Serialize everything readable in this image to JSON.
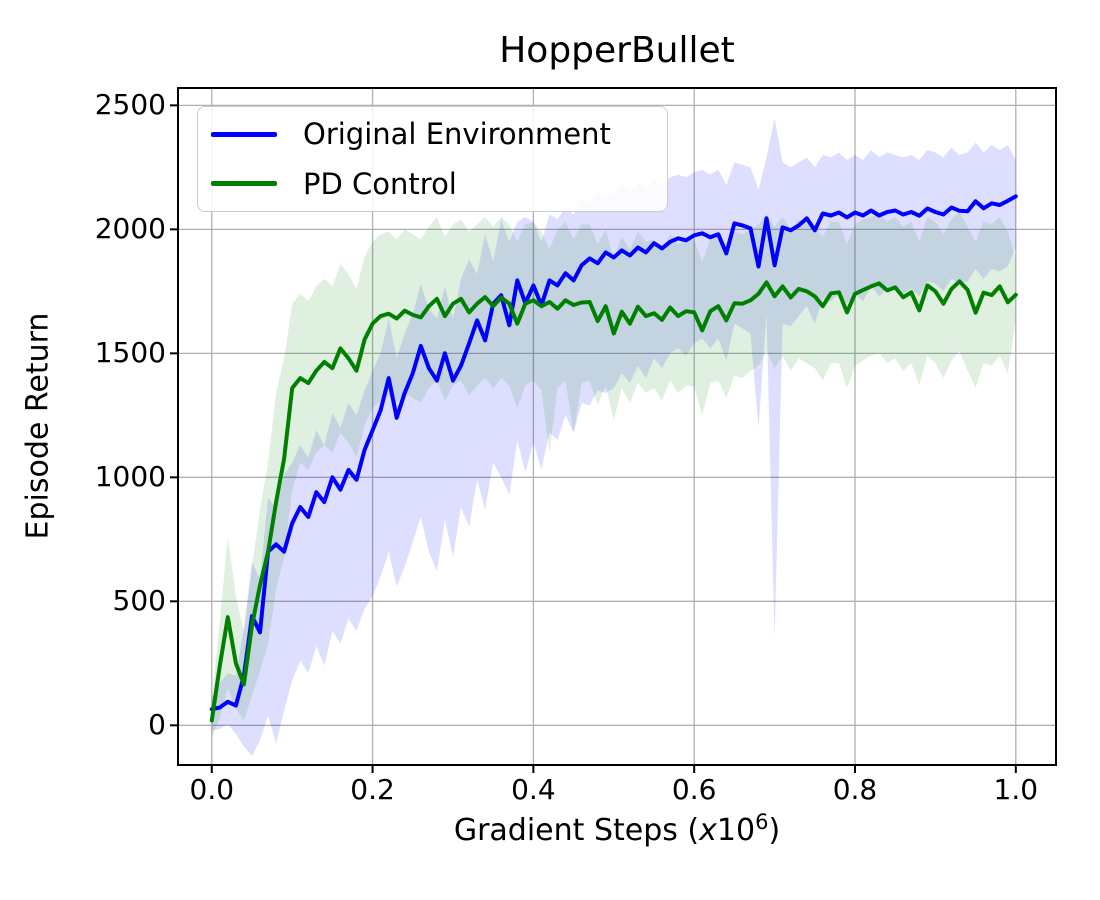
{
  "figure": {
    "background": "#ffffff",
    "grid_color": "#b0b0b0",
    "spine_color": "#000000"
  },
  "chart_data": {
    "type": "line",
    "title": "HopperBullet",
    "ylabel": "Episode Return",
    "xlabel_text": "Gradient Steps (x10^6)",
    "xlabel_parts": {
      "prefix": "Gradient Steps (",
      "variable": "x",
      "base": "10",
      "exponent": "6",
      "suffix": ")"
    },
    "xlim": [
      -0.042,
      1.05
    ],
    "ylim": [
      -160,
      2570
    ],
    "grid": true,
    "legend_position": "upper-left",
    "x_ticks": {
      "values": [
        0,
        0.2,
        0.4,
        0.6,
        0.8,
        1.0
      ],
      "labels": [
        "0.0",
        "0.2",
        "0.4",
        "0.6",
        "0.8",
        "1.0"
      ]
    },
    "y_ticks": {
      "values": [
        0,
        500,
        1000,
        1500,
        2000,
        2500
      ],
      "labels": [
        "0",
        "500",
        "1000",
        "1500",
        "2000",
        "2500"
      ]
    },
    "x": [
      0,
      0.01,
      0.02,
      0.03,
      0.04,
      0.05,
      0.06,
      0.07,
      0.08,
      0.09,
      0.1,
      0.11,
      0.12,
      0.13,
      0.14,
      0.15,
      0.16,
      0.17,
      0.18,
      0.19,
      0.2,
      0.21,
      0.22,
      0.23,
      0.24,
      0.25,
      0.26,
      0.27,
      0.28,
      0.29,
      0.3,
      0.31,
      0.32,
      0.33,
      0.34,
      0.35,
      0.36,
      0.37,
      0.38,
      0.39,
      0.4,
      0.41,
      0.42,
      0.43,
      0.44,
      0.45,
      0.46,
      0.47,
      0.48,
      0.49,
      0.5,
      0.51,
      0.52,
      0.53,
      0.54,
      0.55,
      0.56,
      0.57,
      0.58,
      0.59,
      0.6,
      0.61,
      0.62,
      0.63,
      0.64,
      0.65,
      0.66,
      0.67,
      0.68,
      0.69,
      0.7,
      0.71,
      0.72,
      0.73,
      0.74,
      0.75,
      0.76,
      0.77,
      0.78,
      0.79,
      0.8,
      0.81,
      0.82,
      0.83,
      0.84,
      0.85,
      0.86,
      0.87,
      0.88,
      0.89,
      0.9,
      0.91,
      0.92,
      0.93,
      0.94,
      0.95,
      0.96,
      0.97,
      0.98,
      0.99,
      1.0
    ],
    "series": [
      {
        "name": "Original Environment",
        "color": "#0000ff",
        "band_alpha": 0.13,
        "mean": [
          65,
          72,
          95,
          80,
          200,
          440,
          375,
          700,
          730,
          700,
          815,
          880,
          840,
          940,
          900,
          1000,
          950,
          1030,
          990,
          1110,
          1190,
          1270,
          1400,
          1240,
          1340,
          1420,
          1530,
          1440,
          1390,
          1500,
          1390,
          1450,
          1540,
          1633,
          1552,
          1700,
          1734,
          1613,
          1794,
          1702,
          1774,
          1694,
          1794,
          1774,
          1823,
          1794,
          1855,
          1883,
          1863,
          1907,
          1887,
          1915,
          1895,
          1927,
          1907,
          1944,
          1923,
          1950,
          1964,
          1956,
          1976,
          1984,
          1968,
          1980,
          1903,
          2024,
          2016,
          2004,
          1850,
          2044,
          1855,
          2008,
          1996,
          2016,
          2044,
          1996,
          2064,
          2056,
          2068,
          2048,
          2068,
          2056,
          2076,
          2056,
          2070,
          2076,
          2060,
          2070,
          2055,
          2084,
          2070,
          2060,
          2088,
          2075,
          2073,
          2113,
          2085,
          2105,
          2098,
          2115,
          2133
        ],
        "band_lower": [
          -20,
          -15,
          5,
          -35,
          -85,
          -125,
          -60,
          40,
          -75,
          60,
          180,
          260,
          210,
          320,
          240,
          380,
          330,
          430,
          380,
          470,
          520,
          600,
          700,
          560,
          640,
          740,
          840,
          700,
          620,
          830,
          680,
          880,
          800,
          990,
          870,
          1060,
          1000,
          930,
          1150,
          1020,
          1140,
          1030,
          1180,
          1150,
          1250,
          1180,
          1300,
          1290,
          1350,
          1340,
          1360,
          1420,
          1380,
          1450,
          1400,
          1480,
          1440,
          1500,
          1520,
          1490,
          1540,
          1560,
          1520,
          1560,
          1470,
          1620,
          1600,
          1580,
          1200,
          1660,
          350,
          1620,
          1610,
          1650,
          1690,
          1620,
          1720,
          1710,
          1740,
          1700,
          1740,
          1710,
          1770,
          1730,
          1760,
          1770,
          1740,
          1760,
          1730,
          1790,
          1780,
          1750,
          1800,
          1780,
          1790,
          1840,
          1800,
          1840,
          1830,
          1850,
          1925
        ],
        "band_upper": [
          110,
          170,
          210,
          200,
          390,
          660,
          590,
          920,
          870,
          1010,
          1060,
          1130,
          1080,
          1190,
          1130,
          1260,
          1200,
          1300,
          1250,
          1350,
          1430,
          1500,
          1640,
          1480,
          1580,
          1660,
          1780,
          1680,
          1640,
          1770,
          1640,
          1800,
          1880,
          1820,
          1980,
          1870,
          2040,
          1950,
          2030,
          2050,
          2030,
          1950,
          2060,
          2040,
          2090,
          2060,
          2120,
          2110,
          2150,
          2130,
          2150,
          2180,
          2150,
          2190,
          2160,
          2200,
          2180,
          2210,
          2220,
          2210,
          2230,
          2240,
          2220,
          2240,
          2180,
          2270,
          2260,
          2250,
          2160,
          2290,
          2450,
          2270,
          2250,
          2270,
          2290,
          2250,
          2300,
          2290,
          2310,
          2280,
          2300,
          2280,
          2320,
          2290,
          2310,
          2300,
          2290,
          2300,
          2280,
          2320,
          2310,
          2290,
          2330,
          2300,
          2310,
          2350,
          2310,
          2340,
          2320,
          2340,
          2280
        ]
      },
      {
        "name": "PD Control",
        "color": "#008000",
        "band_alpha": 0.12,
        "mean": [
          20,
          240,
          436,
          250,
          165,
          403,
          565,
          700,
          900,
          1075,
          1360,
          1400,
          1380,
          1430,
          1465,
          1440,
          1520,
          1480,
          1430,
          1555,
          1620,
          1650,
          1660,
          1640,
          1672,
          1655,
          1645,
          1690,
          1720,
          1650,
          1700,
          1720,
          1665,
          1700,
          1727,
          1690,
          1725,
          1700,
          1620,
          1700,
          1714,
          1690,
          1707,
          1680,
          1714,
          1695,
          1705,
          1707,
          1630,
          1690,
          1580,
          1668,
          1620,
          1688,
          1650,
          1662,
          1635,
          1685,
          1650,
          1670,
          1665,
          1593,
          1670,
          1690,
          1633,
          1702,
          1700,
          1714,
          1740,
          1786,
          1730,
          1770,
          1725,
          1760,
          1750,
          1730,
          1690,
          1742,
          1746,
          1665,
          1740,
          1755,
          1770,
          1782,
          1754,
          1766,
          1726,
          1746,
          1673,
          1774,
          1750,
          1700,
          1760,
          1790,
          1756,
          1664,
          1745,
          1735,
          1770,
          1706,
          1736
        ],
        "band_lower": [
          -50,
          30,
          150,
          70,
          20,
          120,
          220,
          330,
          550,
          680,
          950,
          1060,
          1030,
          1100,
          1130,
          1100,
          1180,
          1140,
          1080,
          1210,
          1280,
          1310,
          1330,
          1300,
          1340,
          1320,
          1300,
          1360,
          1390,
          1310,
          1370,
          1390,
          1330,
          1370,
          1400,
          1360,
          1400,
          1370,
          1280,
          1370,
          1390,
          1350,
          1100,
          1360,
          1390,
          1180,
          1380,
          1390,
          1290,
          1370,
          1230,
          1360,
          1300,
          1380,
          1340,
          1360,
          1310,
          1390,
          1340,
          1370,
          1365,
          1250,
          1380,
          1390,
          1320,
          1410,
          1400,
          1430,
          1450,
          1510,
          1440,
          1490,
          1430,
          1480,
          1460,
          1440,
          1390,
          1460,
          1460,
          1360,
          1450,
          1470,
          1490,
          1500,
          1460,
          1480,
          1430,
          1460,
          1370,
          1490,
          1460,
          1400,
          1470,
          1510,
          1430,
          1360,
          1460,
          1450,
          1490,
          1420,
          1630
        ],
        "band_upper": [
          100,
          420,
          760,
          520,
          380,
          640,
          870,
          1060,
          1340,
          1480,
          1700,
          1740,
          1710,
          1770,
          1800,
          1770,
          1860,
          1820,
          1760,
          1890,
          1950,
          1980,
          1990,
          1960,
          2000,
          1980,
          1960,
          2010,
          2050,
          1970,
          2020,
          2040,
          1990,
          2020,
          2050,
          2010,
          2050,
          2020,
          1950,
          2020,
          2030,
          1990,
          1920,
          2000,
          2030,
          1960,
          2020,
          2020,
          1940,
          2000,
          1880,
          1970,
          1920,
          1990,
          1950,
          1960,
          1920,
          1980,
          1940,
          1960,
          1955,
          1870,
          1960,
          1970,
          1910,
          1990,
          1980,
          2000,
          2020,
          2060,
          2010,
          2050,
          2000,
          2040,
          2020,
          2010,
          1970,
          2030,
          2030,
          1940,
          2020,
          2040,
          2050,
          2060,
          2030,
          2050,
          2010,
          2030,
          1950,
          2050,
          2030,
          1980,
          2040,
          2070,
          2010,
          1950,
          2030,
          2020,
          2050,
          1990,
          1885
        ]
      }
    ]
  }
}
